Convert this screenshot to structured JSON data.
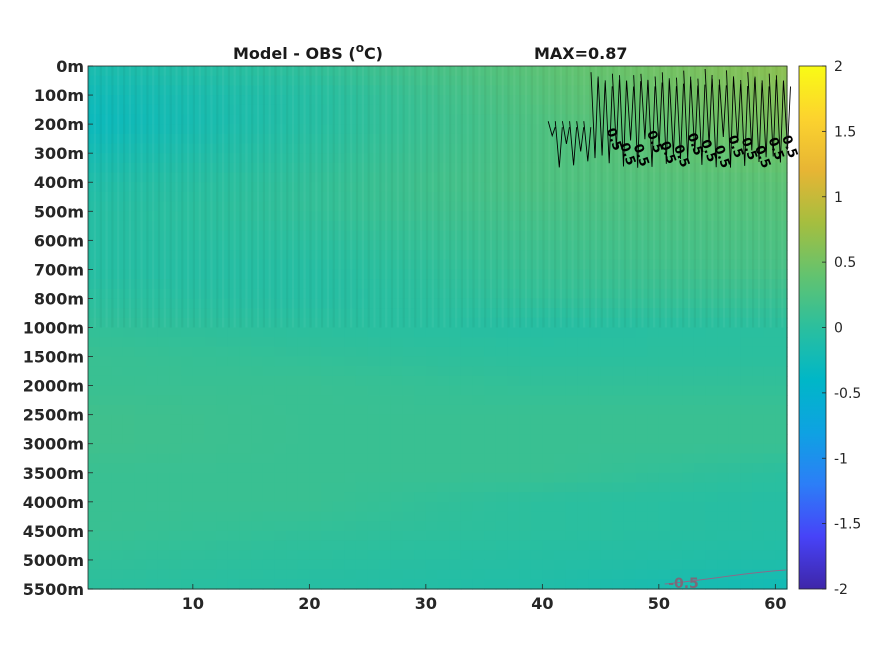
{
  "title": {
    "left_prefix": "Model - OBS (",
    "degree_mark": "o",
    "left_unit": "C)",
    "right": "MAX=0.87"
  },
  "colormap": [
    "#3e26a8",
    "#4743f8",
    "#2c7ef7",
    "#0ea2e2",
    "#00b7c7",
    "#2bbf9e",
    "#63c36f",
    "#a5be3f",
    "#e7b534",
    "#fcd32e",
    "#f9fb15"
  ],
  "chart_data": {
    "type": "heatmap",
    "title": "Model - OBS (oC)",
    "annotation": "MAX=0.87",
    "x_ticks": [
      10,
      20,
      30,
      40,
      50,
      60
    ],
    "xlim": [
      1,
      61
    ],
    "y_ticks": [
      "0m",
      "100m",
      "200m",
      "300m",
      "400m",
      "500m",
      "600m",
      "700m",
      "800m",
      "1000m",
      "1500m",
      "2000m",
      "2500m",
      "3000m",
      "3500m",
      "4000m",
      "4500m",
      "5000m",
      "5500m"
    ],
    "ylim_depth_m": [
      0,
      5500
    ],
    "colorbar": {
      "ticks": [
        "2",
        "1.5",
        "1",
        "0.5",
        "0",
        "-0.5",
        "-1",
        "-1.5",
        "-2"
      ],
      "range": [
        -2,
        2
      ]
    },
    "contours": [
      {
        "level": 0.5,
        "label": "0.5",
        "region": "x 40-61, 50m-350m"
      },
      {
        "level": -0.5,
        "label": "-0.5",
        "region": "x 52-61, near 5500m"
      }
    ],
    "value_profile": {
      "note": "approximate difference by depth level (rows) at x = 1, 20, 40, 61",
      "x": [
        1,
        20,
        40,
        61
      ],
      "rows": [
        [
          -0.15,
          0.05,
          0.35,
          0.65
        ],
        [
          -0.25,
          -0.05,
          0.3,
          0.6
        ],
        [
          -0.3,
          -0.05,
          0.25,
          0.55
        ],
        [
          -0.2,
          0.0,
          0.25,
          0.45
        ],
        [
          -0.1,
          0.05,
          0.25,
          0.35
        ],
        [
          -0.05,
          0.05,
          0.2,
          0.3
        ],
        [
          -0.05,
          0.0,
          0.15,
          0.25
        ],
        [
          -0.05,
          -0.05,
          0.1,
          0.2
        ],
        [
          0.0,
          -0.05,
          0.05,
          0.1
        ],
        [
          0.05,
          0.0,
          -0.05,
          0.0
        ],
        [
          0.1,
          0.05,
          0.0,
          0.0
        ],
        [
          0.1,
          0.1,
          0.05,
          0.05
        ],
        [
          0.15,
          0.1,
          0.1,
          0.1
        ],
        [
          0.15,
          0.1,
          0.1,
          0.1
        ],
        [
          0.1,
          0.1,
          0.1,
          0.0
        ],
        [
          0.1,
          0.1,
          0.0,
          -0.05
        ],
        [
          0.1,
          0.05,
          0.0,
          -0.05
        ],
        [
          0.05,
          0.0,
          -0.05,
          -0.1
        ],
        [
          0.0,
          -0.05,
          -0.1,
          -0.25
        ]
      ]
    }
  }
}
